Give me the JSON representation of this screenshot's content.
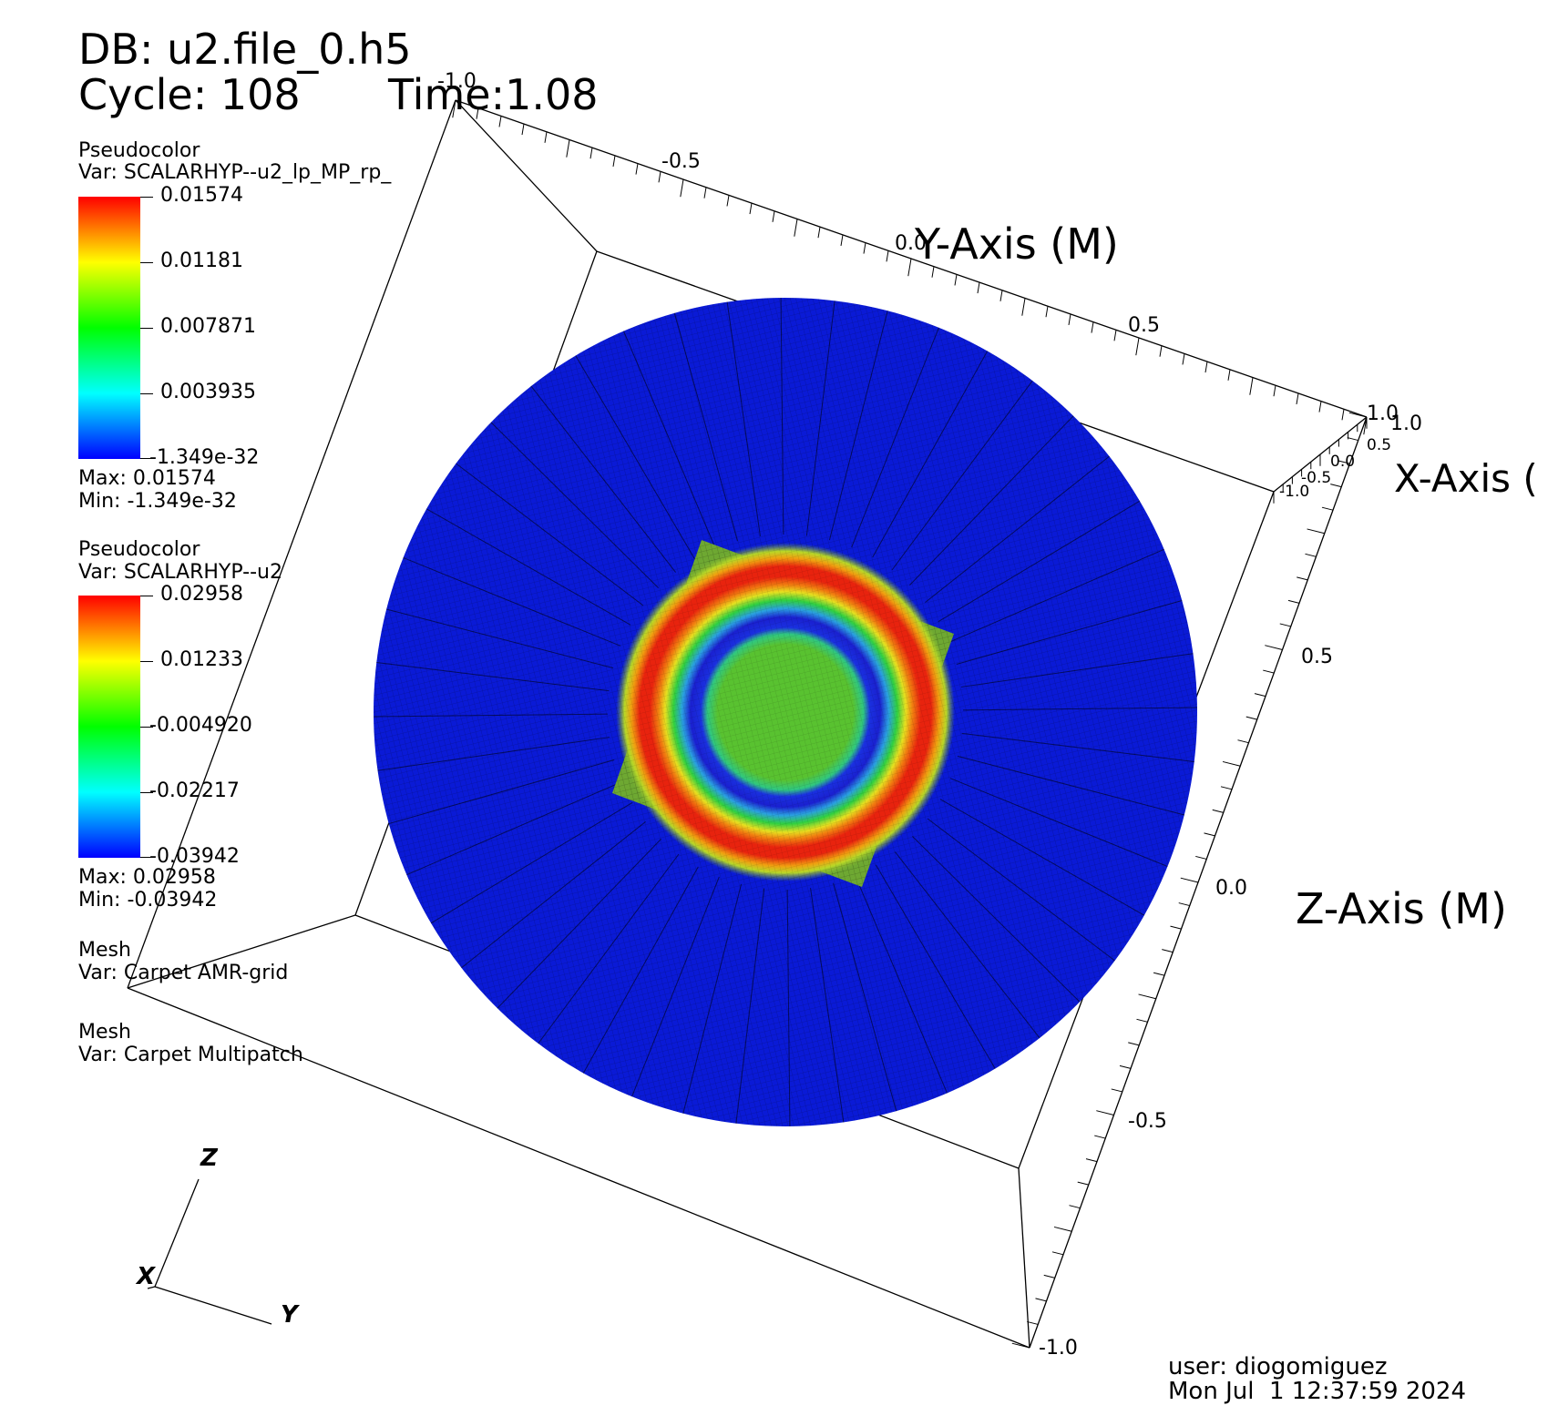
{
  "header": {
    "db_label": "DB: u2.file_0.h5",
    "cycle_label": "Cycle: 108",
    "time_label": "Time:1.08"
  },
  "legends": [
    {
      "plot_type": "Pseudocolor",
      "var_label": "Var: SCALARHYP--u2_lp_MP_rp_",
      "ticks": [
        "0.01574",
        "0.01181",
        "0.007871",
        "0.003935",
        "-1.349e-32"
      ],
      "max_label": "Max:  0.01574",
      "min_label": "Min: -1.349e-32"
    },
    {
      "plot_type": "Pseudocolor",
      "var_label": "Var: SCALARHYP--u2",
      "ticks": [
        "0.02958",
        "0.01233",
        "-0.004920",
        "-0.02217",
        "-0.03942"
      ],
      "max_label": "Max:  0.02958",
      "min_label": "Min: -0.03942"
    },
    {
      "plot_type": "Mesh",
      "var_label": "Var: Carpet AMR-grid"
    },
    {
      "plot_type": "Mesh",
      "var_label": "Var: Carpet Multipatch"
    }
  ],
  "axes": {
    "y_axis_title": "Y-Axis (M)",
    "x_axis_title": "X-Axis (",
    "z_axis_title": "Z-Axis (M)",
    "y_ticks": [
      "-1.0",
      "-0.5",
      "0.0",
      "0.5",
      "1.0"
    ],
    "x_ticks": [
      "1.0",
      "0.5",
      "0.0",
      "-0.5",
      "-1.0"
    ],
    "z_ticks": [
      "0.5",
      "0.0",
      "-0.5",
      "-1.0"
    ]
  },
  "triad": {
    "z": "Z",
    "x": "X",
    "y": "Y"
  },
  "footer": {
    "user_label": "user: diogomiguez",
    "date_label": "Mon Jul  1 12:37:59 2024"
  },
  "colors": {
    "outer_disk": "#0a1ad6",
    "ring_red": "#e8230e",
    "ring_blue": "#1520d8",
    "center_green": "#55c02a",
    "patch_green": "#6ea832"
  }
}
